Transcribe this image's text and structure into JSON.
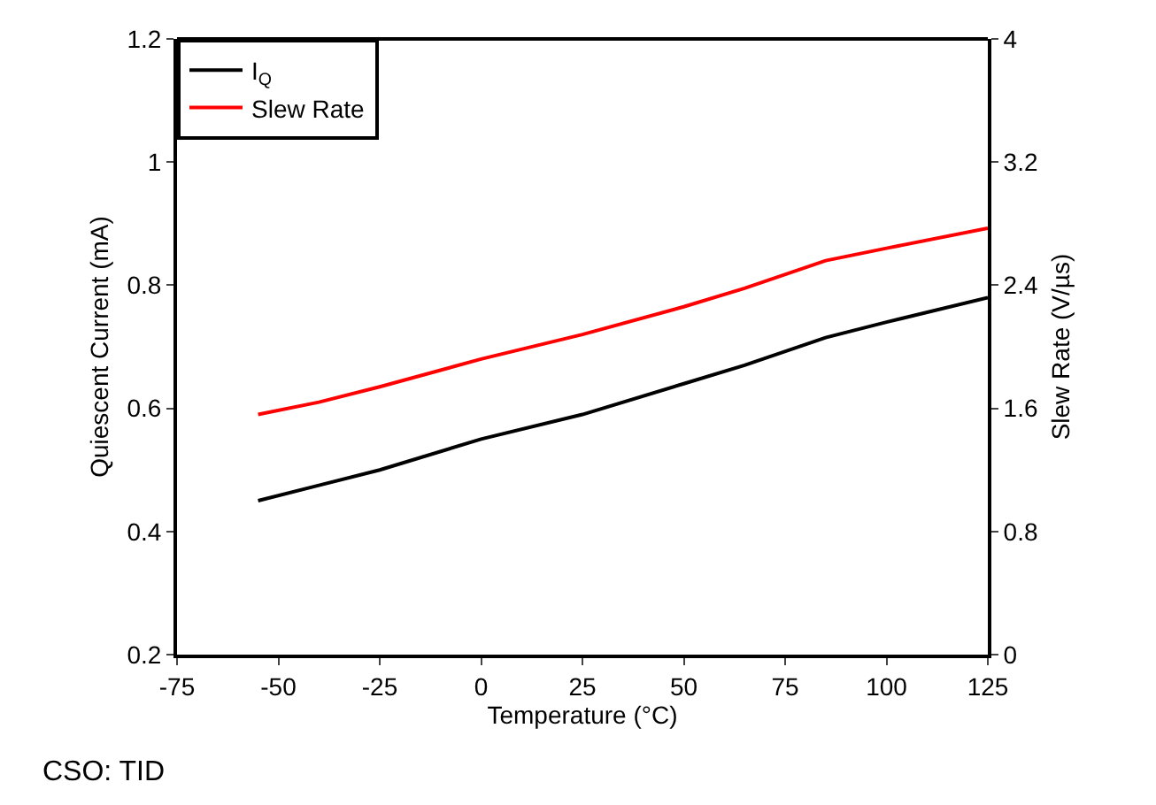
{
  "chart_data": {
    "type": "line",
    "xlabel": "Temperature (°C)",
    "ylabel": "Quiescent Current (mA)",
    "y2label": "Slew Rate (V/µs)",
    "x": [
      -55,
      -40,
      -25,
      0,
      25,
      50,
      65,
      85,
      100,
      125
    ],
    "series": [
      {
        "name": "I$_{Q}$",
        "color": "#000000",
        "values": [
          0.45,
          0.475,
          0.5,
          0.55,
          0.59,
          0.64,
          0.67,
          0.715,
          0.74,
          0.78
        ]
      },
      {
        "name": "Slew Rate",
        "color": "#ff0000",
        "axis": "y2",
        "values": [
          1.56,
          1.64,
          1.74,
          1.92,
          2.08,
          2.26,
          2.38,
          2.56,
          2.64,
          2.77
        ]
      }
    ],
    "xlim": [
      -75,
      125
    ],
    "xticks": [
      -75,
      -50,
      -25,
      0,
      25,
      50,
      75,
      100,
      125
    ],
    "ylim": [
      0.2,
      1.2
    ],
    "yticks": [
      0.2,
      0.4,
      0.6,
      0.8,
      1,
      1.2
    ],
    "y2lim": [
      0,
      4
    ],
    "y2ticks": [
      0,
      0.8,
      1.6,
      2.4,
      3.2,
      4
    ],
    "grid": false,
    "legend": "top left",
    "marker": "none",
    "line_style": "solid",
    "annotations": [
      "CSO: TID"
    ]
  }
}
